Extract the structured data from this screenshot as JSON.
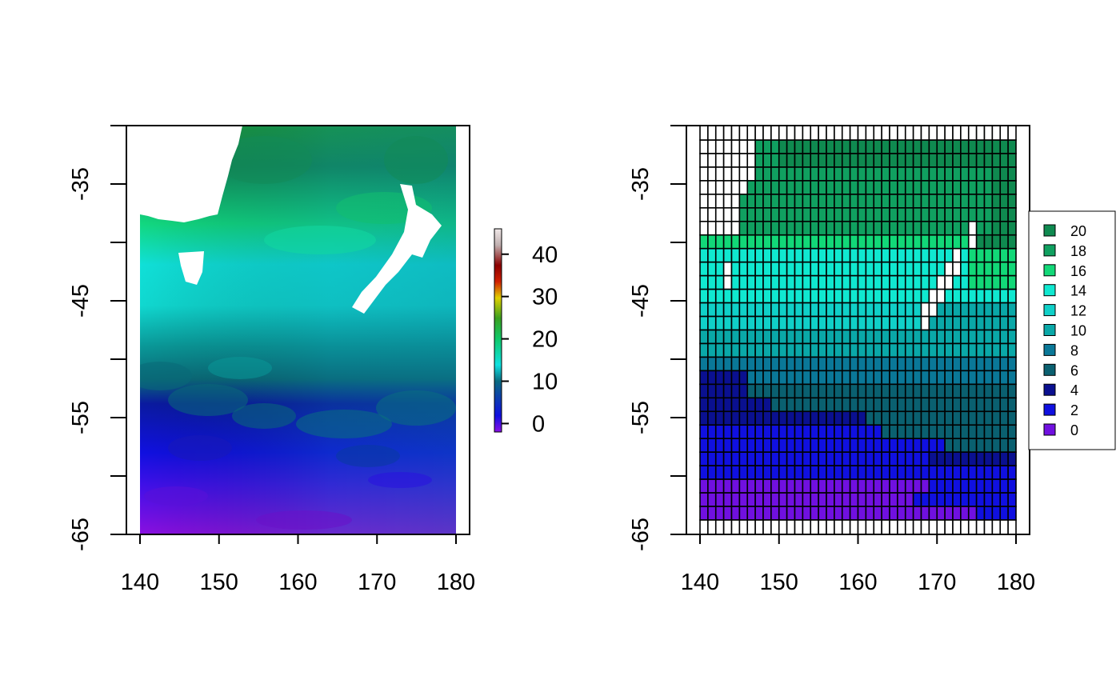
{
  "chart_data": [
    {
      "type": "heatmap",
      "title": "",
      "xlabel": "",
      "ylabel": "",
      "x_ticks": [
        "140",
        "150",
        "160",
        "170",
        "180"
      ],
      "y_ticks": [
        "-35",
        "-45",
        "-55",
        "-65"
      ],
      "xlim": [
        138.3,
        181.7
      ],
      "ylim": [
        -65,
        -30
      ],
      "data_extent": {
        "x": [
          140,
          180
        ],
        "y": [
          -65,
          -30
        ]
      },
      "colorbar": {
        "ticks": [
          "0",
          "10",
          "20",
          "30",
          "40"
        ],
        "range": [
          -2,
          46
        ],
        "colors": [
          "#8a0fe6",
          "#1010e0",
          "#0a6a80",
          "#10e0e0",
          "#10c868",
          "#3aa020",
          "#e0d000",
          "#d02000",
          "#8b0000",
          "#c0b0b0",
          "#f0e8e8"
        ]
      },
      "description_fields": {
        "land_regions": [
          "Australia",
          "New Zealand",
          "Tasmania"
        ]
      }
    },
    {
      "type": "heatmap",
      "title": "",
      "xlabel": "",
      "ylabel": "",
      "x_ticks": [
        "140",
        "150",
        "160",
        "170",
        "180"
      ],
      "y_ticks": [
        "-35",
        "-45",
        "-55",
        "-65"
      ],
      "xlim": [
        138.3,
        181.7
      ],
      "ylim": [
        -65,
        -30
      ],
      "grid": {
        "columns": 40,
        "rows": 28,
        "x_start": 140,
        "x_end": 180,
        "y_start": -30,
        "y_end": -65
      },
      "legend": {
        "position": "right",
        "entries": [
          {
            "label": "20",
            "color": "#0f8a50"
          },
          {
            "label": "18",
            "color": "#10a060"
          },
          {
            "label": "16",
            "color": "#12d878"
          },
          {
            "label": "14",
            "color": "#10e8d0"
          },
          {
            "label": "12",
            "color": "#10d0c8"
          },
          {
            "label": "10",
            "color": "#0aa8a8"
          },
          {
            "label": "8",
            "color": "#0a7898"
          },
          {
            "label": "6",
            "color": "#0a6070"
          },
          {
            "label": "4",
            "color": "#0a1090"
          },
          {
            "label": "2",
            "color": "#1010e0"
          },
          {
            "label": "0",
            "color": "#7010e0"
          }
        ]
      }
    }
  ]
}
